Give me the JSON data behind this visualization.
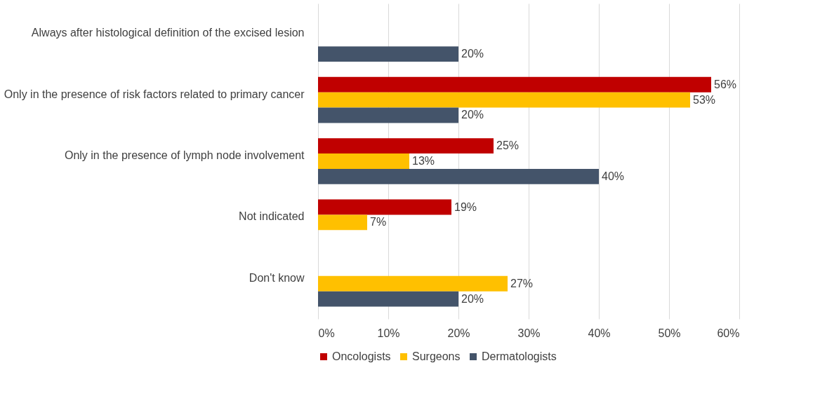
{
  "chart_data": {
    "type": "bar",
    "orientation": "horizontal",
    "categories": [
      "Always after histological definition of the excised lesion",
      "Only in the presence of risk factors related to primary cancer",
      "Only in the presence of lymph node involvement",
      "Not indicated",
      "Don't know"
    ],
    "series": [
      {
        "name": "Oncologists",
        "color": "#c00000",
        "values": [
          null,
          56,
          25,
          19,
          null
        ],
        "value_labels": [
          null,
          "56%",
          "25%",
          "19%",
          null
        ]
      },
      {
        "name": "Surgeons",
        "color": "#ffc000",
        "values": [
          null,
          53,
          13,
          7,
          27
        ],
        "value_labels": [
          null,
          "53%",
          "13%",
          "7%",
          "27%"
        ]
      },
      {
        "name": "Dermatologists",
        "color": "#44546a",
        "values": [
          20,
          20,
          40,
          null,
          20
        ],
        "value_labels": [
          "20%",
          "20%",
          "40%",
          null,
          "20%"
        ]
      }
    ],
    "xlim": [
      0,
      60
    ],
    "xticks": [
      {
        "value": 0,
        "label": "0%"
      },
      {
        "value": 10,
        "label": "10%"
      },
      {
        "value": 20,
        "label": "20%"
      },
      {
        "value": 30,
        "label": "30%"
      },
      {
        "value": 40,
        "label": "40%"
      },
      {
        "value": 50,
        "label": "50%"
      },
      {
        "value": 60,
        "label": "60%"
      }
    ],
    "grid": "x",
    "legend": "bottom"
  }
}
